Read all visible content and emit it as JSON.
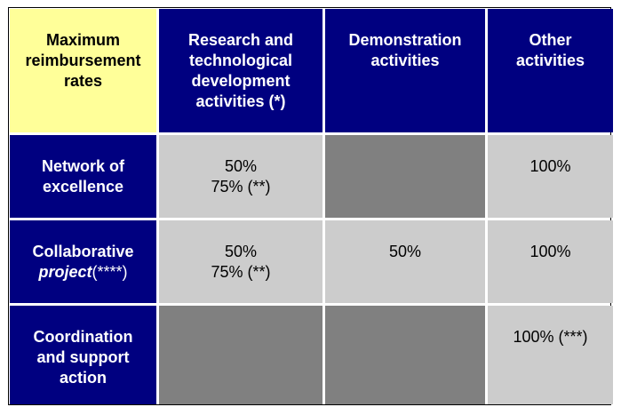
{
  "table": {
    "header": [
      [
        "Maximum",
        "reimbursement",
        "rates"
      ],
      [
        "Research and",
        "technological",
        "development",
        "activities (*)"
      ],
      [
        "Demonstration",
        "activities"
      ],
      [
        "Other",
        "activities"
      ]
    ],
    "rows": [
      {
        "label": [
          "Network of",
          "excellence"
        ],
        "cells": [
          [
            "50%",
            "75% (**)"
          ],
          null,
          [
            "100%"
          ]
        ]
      },
      {
        "label": [
          "Collaborative"
        ],
        "label_italic": "project",
        "label_suffix": "(****)",
        "cells": [
          [
            "50%",
            "75% (**)"
          ],
          [
            "50%"
          ],
          [
            "100%"
          ]
        ]
      },
      {
        "label": [
          "Coordination",
          "and support",
          "action"
        ],
        "cells": [
          null,
          null,
          [
            "100% (***)"
          ]
        ]
      }
    ]
  }
}
